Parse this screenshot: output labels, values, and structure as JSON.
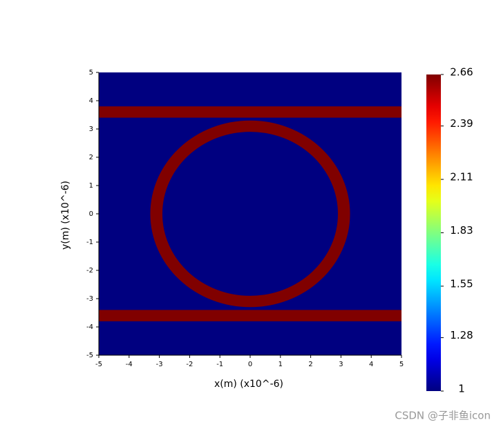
{
  "chart_data": {
    "type": "heatmap",
    "xlabel": "x(m) (x10^-6)",
    "ylabel": "y(m) (x10^-6)",
    "xlim": [
      -5,
      5
    ],
    "ylim": [
      -5,
      5
    ],
    "xticks": [
      -5,
      -4,
      -3,
      -2,
      -1,
      0,
      1,
      2,
      3,
      4,
      5
    ],
    "yticks": [
      -5,
      -4,
      -3,
      -2,
      -1,
      0,
      1,
      2,
      3,
      4,
      5
    ],
    "colormap": "jet",
    "colorbar": {
      "lim": [
        1,
        2.66
      ],
      "ticks": [
        1,
        1.28,
        1.55,
        1.83,
        2.11,
        2.39,
        2.66
      ]
    },
    "background": 1,
    "waveguides": [
      {
        "y": [
          3.4,
          3.8
        ],
        "value": 2.66
      },
      {
        "y": [
          -3.8,
          -3.4
        ],
        "value": 2.66
      }
    ],
    "ring": {
      "center": [
        0,
        0
      ],
      "radii": [
        2.9,
        3.3
      ],
      "value": 2.66
    }
  },
  "watermark": "CSDN @子非鱼icon"
}
